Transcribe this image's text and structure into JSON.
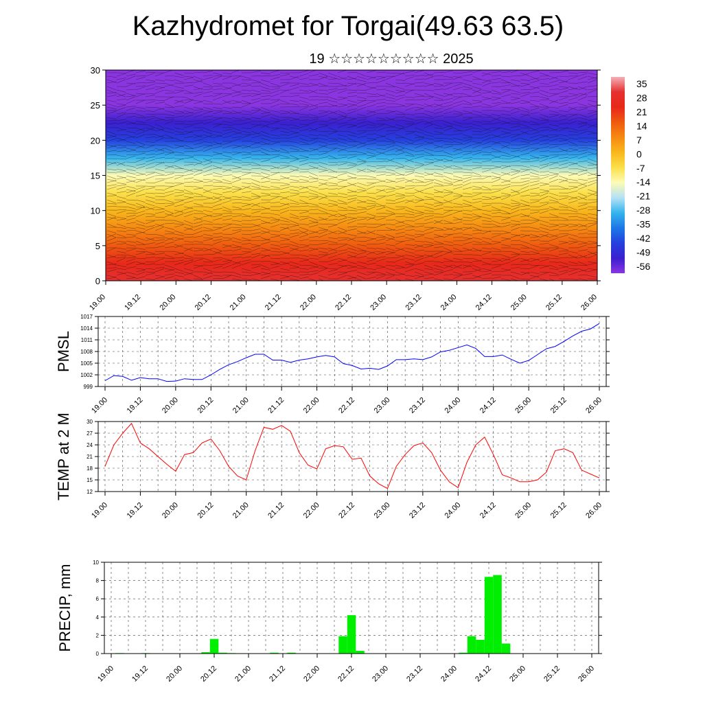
{
  "title": "Kazhydromet for Torgai(49.63 63.5)",
  "subtitle": "19 ☆☆☆☆☆☆☆☆☆ 2025",
  "time_labels": [
    "19.00",
    "19.12",
    "20.00",
    "20.12",
    "21.00",
    "21.12",
    "22.00",
    "22.12",
    "23.00",
    "23.12",
    "24.00",
    "24.12",
    "25.00",
    "25.12",
    "26.00"
  ],
  "chart_data": [
    {
      "type": "heatmap",
      "name": "vertical temperature and wind cross-section",
      "x_range": [
        "19.00",
        "26.00"
      ],
      "ylim": [
        0,
        30
      ],
      "y_ticks": [
        0,
        5,
        10,
        15,
        20,
        25,
        30
      ],
      "colorbar": {
        "labels": [
          35,
          28,
          21,
          14,
          7,
          0,
          -7,
          -14,
          -21,
          -28,
          -35,
          -42,
          -49,
          -56
        ],
        "colors": [
          "#f3b1b8",
          "#e53030",
          "#e8281a",
          "#ef5a10",
          "#f68a12",
          "#f9b71c",
          "#fbe04a",
          "#fdfbb6",
          "#b5e1f5",
          "#35b5ee",
          "#1d78e6",
          "#2540de",
          "#3a20d0",
          "#8a35e0"
        ]
      },
      "profile_levels": [
        0,
        2.5,
        5,
        7.5,
        10,
        12.5,
        15,
        17.5,
        20,
        22.5,
        25,
        27.5,
        30
      ],
      "profile_temps": [
        28,
        24,
        18,
        10,
        3,
        -4,
        -12,
        -24,
        -38,
        -48,
        -52,
        -56,
        -58
      ]
    },
    {
      "type": "line",
      "ylabel": "PMSL",
      "ylim": [
        999,
        1017
      ],
      "y_ticks": [
        999,
        1002,
        1005,
        1008,
        1011,
        1014,
        1017
      ],
      "color": "#0000ff",
      "x_hours": [
        0,
        3,
        6,
        9,
        12,
        15,
        18,
        21,
        24,
        27,
        30,
        33,
        36,
        39,
        42,
        45,
        48,
        51,
        54,
        57,
        60,
        63,
        66,
        69,
        72,
        75,
        78,
        81,
        84,
        87,
        90,
        93,
        96,
        99,
        102,
        105,
        108,
        111,
        114,
        117,
        120,
        123,
        126,
        129,
        132,
        135,
        138,
        141,
        144,
        147,
        150,
        153,
        156,
        159,
        162,
        165,
        168
      ],
      "values": [
        1000.5,
        1001.8,
        1001.6,
        1000.6,
        1001.3,
        1001.0,
        1001.0,
        1000.3,
        1000.4,
        1001.0,
        1000.8,
        1000.8,
        1002.0,
        1003.4,
        1004.6,
        1005.4,
        1006.4,
        1007.3,
        1007.3,
        1005.8,
        1005.8,
        1005.2,
        1005.8,
        1006.1,
        1006.6,
        1007.0,
        1006.6,
        1004.9,
        1004.4,
        1003.5,
        1003.7,
        1003.4,
        1004.3,
        1005.9,
        1005.9,
        1006.1,
        1005.9,
        1006.6,
        1007.9,
        1008.3,
        1009.0,
        1009.7,
        1008.8,
        1006.7,
        1006.7,
        1007.1,
        1006.0,
        1005.0,
        1005.7,
        1007.2,
        1008.7,
        1009.3,
        1010.6,
        1012.0,
        1013.2,
        1013.8,
        1015.2
      ]
    },
    {
      "type": "line",
      "ylabel": "TEMP at 2 M",
      "ylim": [
        12,
        30
      ],
      "y_ticks": [
        12,
        15,
        18,
        21,
        24,
        27,
        30
      ],
      "color": "#ff0000",
      "x_hours": [
        0,
        3,
        6,
        9,
        12,
        15,
        18,
        21,
        24,
        27,
        30,
        33,
        36,
        39,
        42,
        45,
        48,
        51,
        54,
        57,
        60,
        63,
        66,
        69,
        72,
        75,
        78,
        81,
        84,
        87,
        90,
        93,
        96,
        99,
        102,
        105,
        108,
        111,
        114,
        117,
        120,
        123,
        126,
        129,
        132,
        135,
        138,
        141,
        144,
        147,
        150,
        153,
        156,
        159,
        162,
        165,
        168
      ],
      "values": [
        18.5,
        24.0,
        27.0,
        29.5,
        24.5,
        23.0,
        21.0,
        19.0,
        17.2,
        21.5,
        22.0,
        24.5,
        25.5,
        22.5,
        18.5,
        16.0,
        15.0,
        22.5,
        28.5,
        28.0,
        29.0,
        27.5,
        22.0,
        18.8,
        17.8,
        23.0,
        23.8,
        23.5,
        20.3,
        20.6,
        16.0,
        14.0,
        12.8,
        18.5,
        21.5,
        23.8,
        24.5,
        22.0,
        17.5,
        14.5,
        13.0,
        19.5,
        24.0,
        26.0,
        21.5,
        16.3,
        15.5,
        14.5,
        14.5,
        15.0,
        17.0,
        22.5,
        23.0,
        22.0,
        17.5,
        16.5,
        15.5
      ]
    },
    {
      "type": "bar",
      "ylabel": "PRECIP, mm",
      "ylim": [
        0,
        10
      ],
      "y_ticks": [
        0,
        2,
        4,
        6,
        8,
        10
      ],
      "color": "#00ee00",
      "x_hours": [
        3,
        12,
        33,
        36,
        39,
        42,
        57,
        63,
        81,
        84,
        87,
        123,
        126,
        129,
        132,
        135,
        138
      ],
      "values": [
        0.05,
        0.05,
        0.15,
        1.6,
        0.1,
        0.05,
        0.1,
        0.1,
        1.9,
        4.2,
        0.3,
        0.1,
        1.9,
        1.5,
        8.4,
        8.6,
        1.1
      ]
    }
  ]
}
